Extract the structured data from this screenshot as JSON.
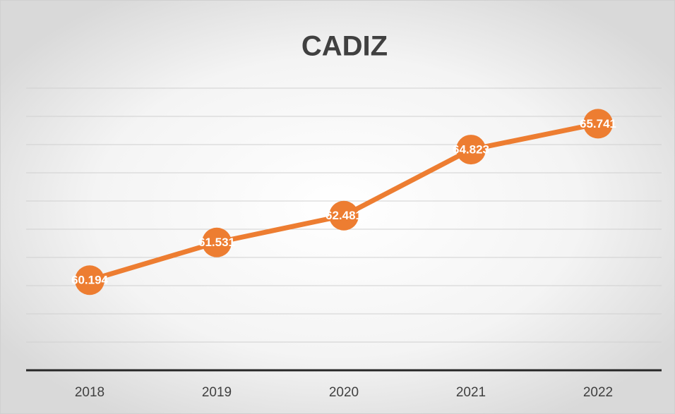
{
  "chart_data": {
    "type": "line",
    "title": "CADIZ",
    "categories": [
      "2018",
      "2019",
      "2020",
      "2021",
      "2022"
    ],
    "values": [
      60194,
      61531,
      62481,
      64823,
      65741
    ],
    "value_labels": [
      "60.194",
      "61.531",
      "62.481",
      "64.823",
      "65.741"
    ],
    "color": "#ed7d31",
    "ylim": [
      57000,
      67000
    ],
    "yticks": [
      57000,
      58000,
      59000,
      60000,
      61000,
      62000,
      63000,
      64000,
      65000,
      66000,
      67000
    ],
    "grid": true
  }
}
